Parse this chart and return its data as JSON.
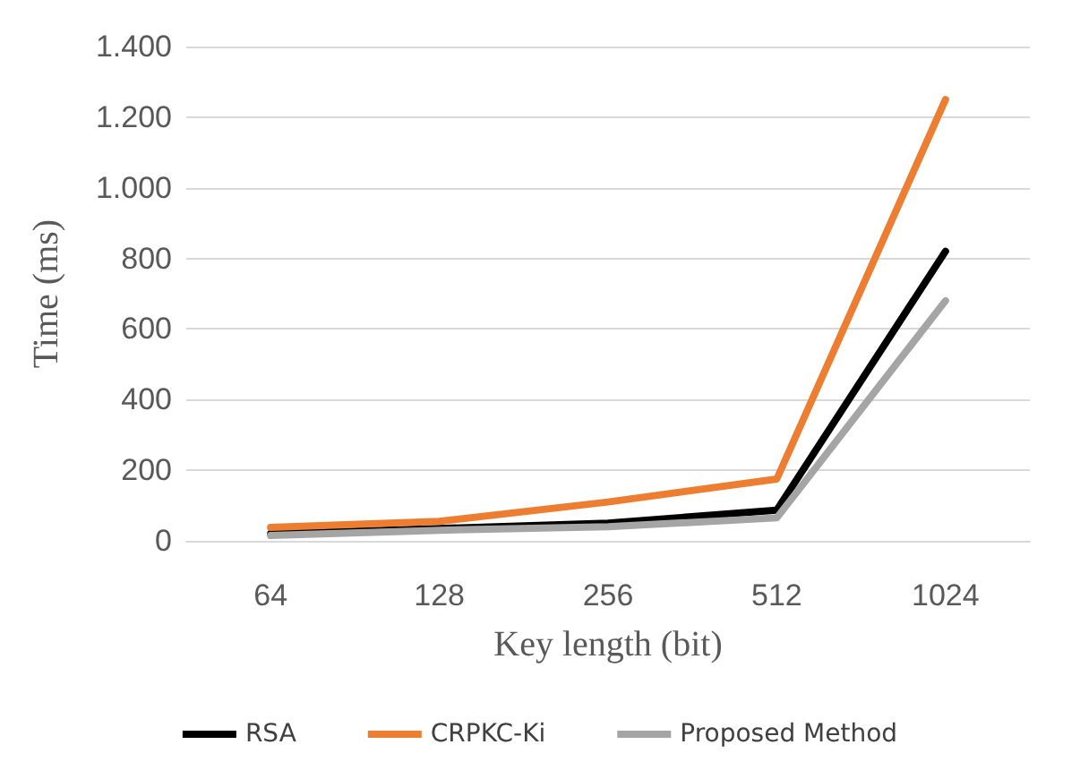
{
  "chart_data": {
    "type": "line",
    "xlabel": "Key length (bit)",
    "ylabel": "Time (ms)",
    "categories": [
      "64",
      "128",
      "256",
      "512",
      "1024"
    ],
    "series": [
      {
        "name": "RSA",
        "color": "#000000",
        "values": [
          20,
          35,
          50,
          87,
          820
        ]
      },
      {
        "name": "CRPKC-Ki",
        "color": "#ed7d31",
        "values": [
          38,
          55,
          110,
          175,
          1250
        ]
      },
      {
        "name": "Proposed Method",
        "color": "#a5a5a5",
        "values": [
          15,
          30,
          40,
          65,
          680
        ]
      }
    ],
    "ylim": [
      0,
      1400
    ],
    "yticks": [
      0,
      200,
      400,
      600,
      800,
      {
        "value": 1000,
        "label": "1.000"
      },
      {
        "value": 1200,
        "label": "1.200"
      },
      {
        "value": 1400,
        "label": "1.400"
      }
    ],
    "grid": "y",
    "legend": "bottom",
    "marker": "none",
    "line_style": "solid"
  }
}
